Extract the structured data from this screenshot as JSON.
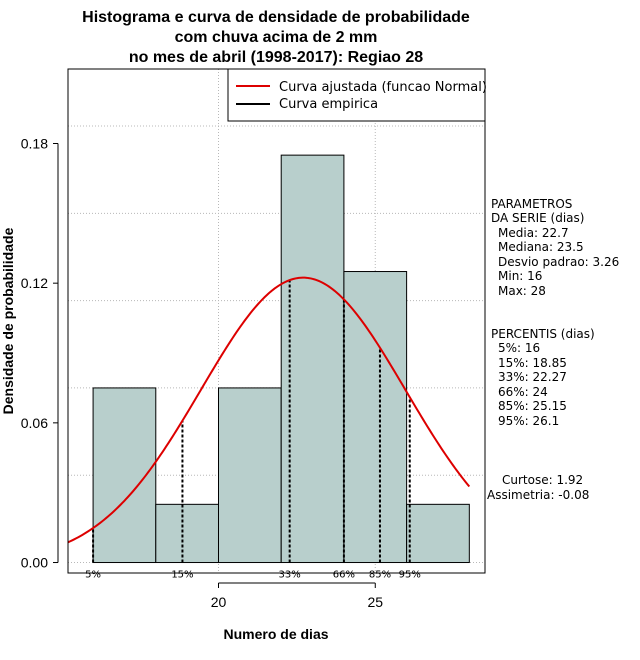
{
  "chart_data": {
    "type": "bar",
    "title_lines": [
      "Histograma e curva de densidade de probabilidade",
      "com chuva acima de 2 mm",
      "no mes de abril (1998-2017): Regiao 28"
    ],
    "xlabel": "Numero de dias",
    "ylabel": "Densidade de probabilidade",
    "xlim": [
      15.2,
      28.5
    ],
    "ylim": [
      -0.0045,
      0.212
    ],
    "x_ticks": [
      20,
      25
    ],
    "y_ticks": [
      0.0,
      0.06,
      0.12,
      0.18
    ],
    "y_tick_labels": [
      "0.00",
      "0.06",
      "0.12",
      "0.18"
    ],
    "histogram": {
      "bin_edges": [
        16,
        18,
        20,
        22,
        24,
        26,
        28
      ],
      "densities": [
        0.075,
        0.025,
        0.075,
        0.175,
        0.125,
        0.025
      ],
      "fill_color": "#b8cfcc"
    },
    "normal_curve": {
      "name": "Curva ajustada (funcao Normal)",
      "mean": 22.7,
      "sd": 3.26,
      "color": "#dd0000"
    },
    "empirical_curve": {
      "name": "Curva empirica",
      "color": "#000000"
    },
    "percentile_markers": [
      {
        "label": "5%",
        "x": 16
      },
      {
        "label": "15%",
        "x": 18.85
      },
      {
        "label": "33%",
        "x": 22.27
      },
      {
        "label": "66%",
        "x": 24
      },
      {
        "label": "85%",
        "x": 25.15
      },
      {
        "label": "95%",
        "x": 26.1
      }
    ],
    "legend_position": "top-right"
  },
  "side_panel": {
    "params_title_1": "PARAMETROS",
    "params_title_2": "DA SERIE (dias)",
    "media": "Media: 22.7",
    "mediana": "Mediana: 23.5",
    "desvio": "Desvio padrao: 3.26",
    "min": "Min: 16",
    "max": "Max: 28",
    "pct_title": "PERCENTIS (dias)",
    "p5": "5%: 16",
    "p15": "15%: 18.85",
    "p33": "33%: 22.27",
    "p66": "66%: 24",
    "p85": "85%: 25.15",
    "p95": "95%: 26.1",
    "curtose": "Curtose: 1.92",
    "assimetria": "Assimetria: -0.08"
  }
}
